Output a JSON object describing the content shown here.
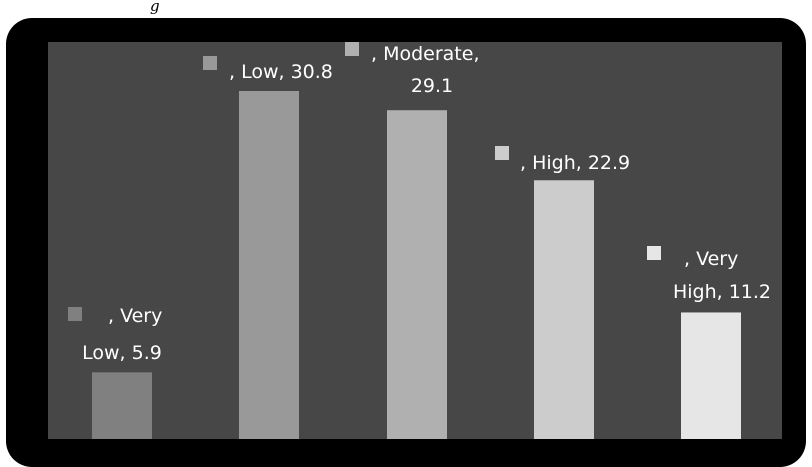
{
  "header": {
    "caption_fragment": "g"
  },
  "chart_data": {
    "type": "bar",
    "categories": [
      "Very Low",
      "Low",
      "Moderate",
      "High",
      "Very High"
    ],
    "values": [
      5.9,
      30.8,
      29.1,
      22.9,
      11.2
    ],
    "ylim": [
      0,
      32
    ],
    "grid": false,
    "legend": "none",
    "colors": {
      "outer_frame": "#000000",
      "plot_background": "#474747",
      "bars": [
        "#808080",
        "#999999",
        "#b0b0b0",
        "#cccccc",
        "#e6e6e6"
      ],
      "label_text": "#ffffff"
    },
    "data_labels": [
      {
        "lines": [
          ", Very",
          "Low, 5.9"
        ]
      },
      {
        "lines": [
          ", Low, 30.8"
        ]
      },
      {
        "lines": [
          ", Moderate,",
          "29.1"
        ]
      },
      {
        "lines": [
          ", High, 22.9"
        ]
      },
      {
        "lines": [
          ", Very",
          "High, 11.2"
        ]
      }
    ]
  }
}
